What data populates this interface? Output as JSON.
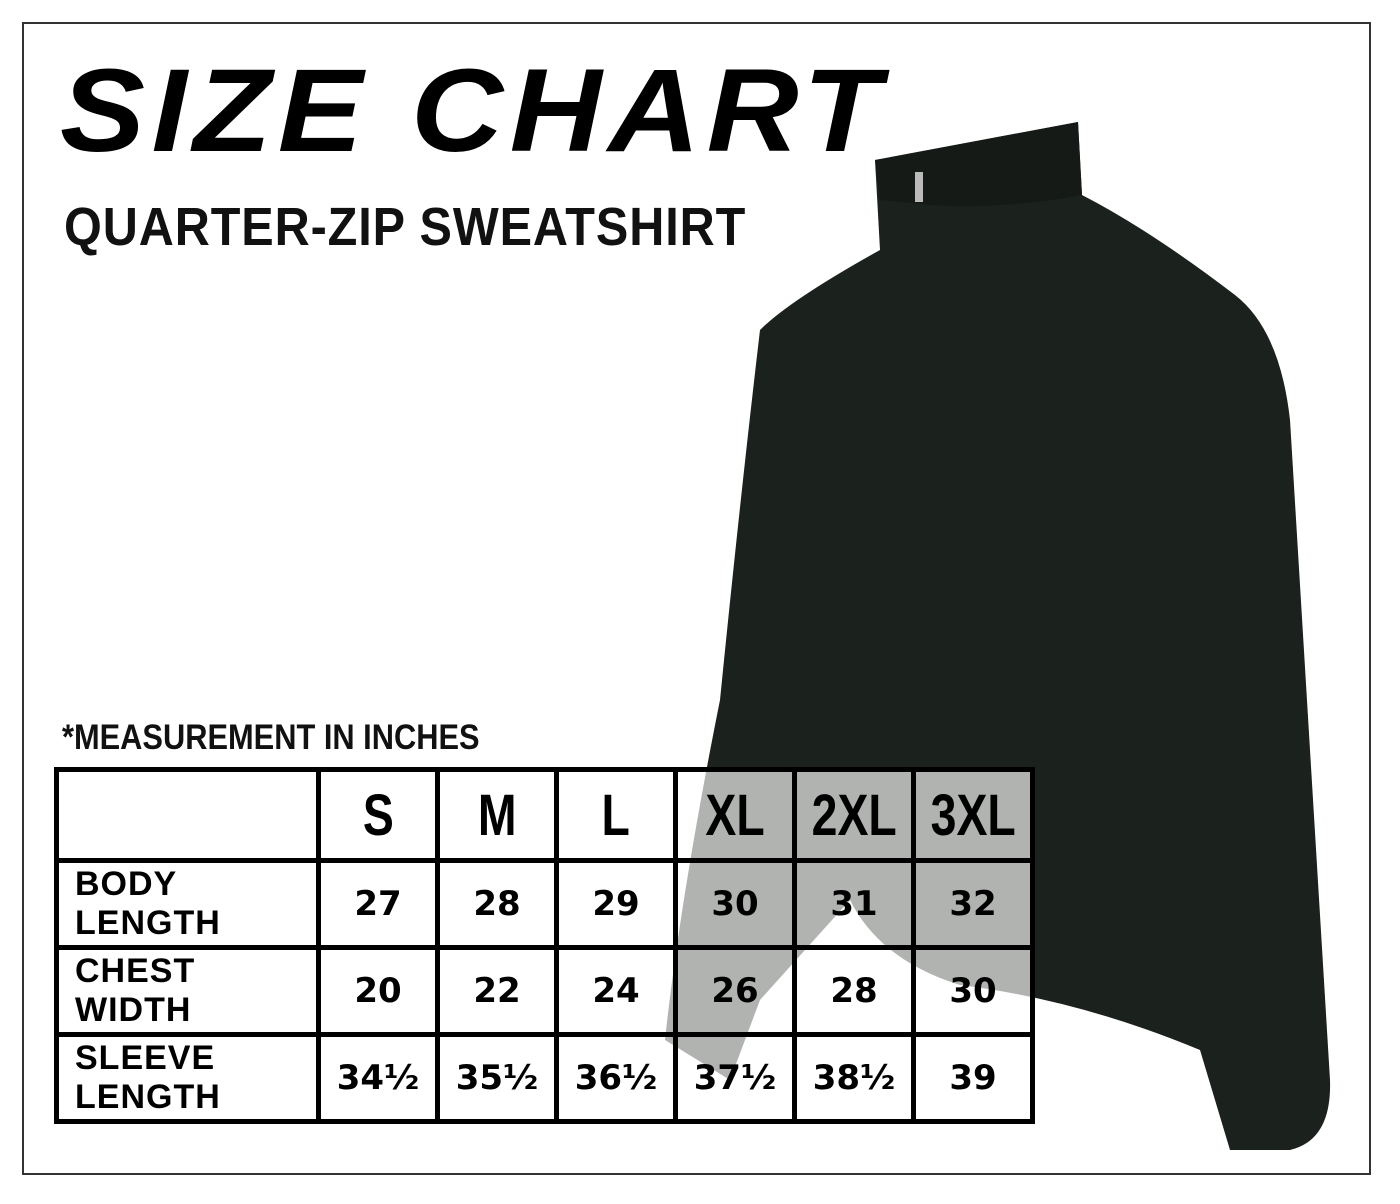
{
  "title": "SIZE CHART",
  "subtitle": "QUARTER-ZIP SWEATSHIRT",
  "note": "*MEASUREMENT IN INCHES",
  "product_image": {
    "icon": "quarter-zip-sweatshirt",
    "color": "#1b211d"
  },
  "table": {
    "sizes": [
      "S",
      "M",
      "L",
      "XL",
      "2XL",
      "3XL"
    ],
    "rows": [
      {
        "label": "BODY LENGTH",
        "values": [
          "27",
          "28",
          "29",
          "30",
          "31",
          "32"
        ]
      },
      {
        "label": "CHEST WIDTH",
        "values": [
          "20",
          "22",
          "24",
          "26",
          "28",
          "30"
        ]
      },
      {
        "label": "SLEEVE LENGTH",
        "values": [
          "34½",
          "35½",
          "36½",
          "37½",
          "38½",
          "39"
        ]
      }
    ]
  }
}
